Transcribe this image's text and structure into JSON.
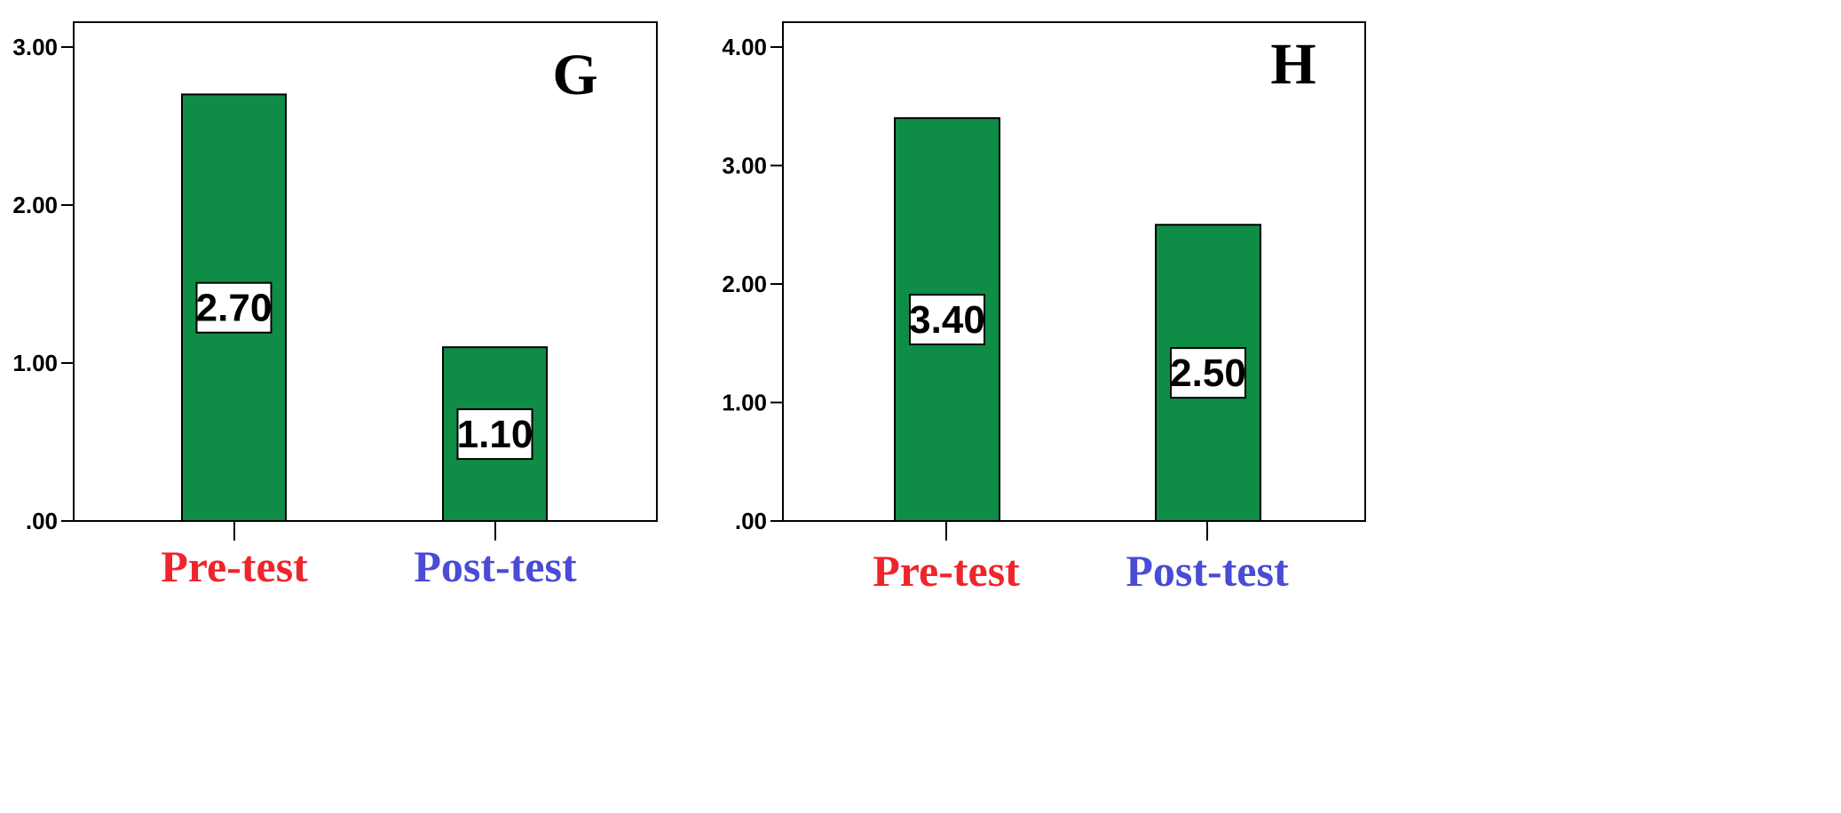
{
  "colors": {
    "bar": "#0f8c46",
    "pre_test_label": "#f0242b",
    "post_test_label": "#4a4bd6",
    "axis": "#000000",
    "frame_bg": "#ffffff"
  },
  "chart_data": [
    {
      "type": "bar",
      "panel": "G",
      "categories": [
        "Pre-test",
        "Post-test"
      ],
      "values": [
        2.7,
        1.1
      ],
      "value_labels": [
        "2.70",
        "1.10"
      ],
      "ylim": [
        0,
        3.0
      ],
      "yticks": [
        ".00",
        "1.00",
        "2.00",
        "3.00"
      ],
      "ytick_values": [
        0,
        1,
        2,
        3
      ],
      "grid": false,
      "legend": "none"
    },
    {
      "type": "bar",
      "panel": "H",
      "categories": [
        "Pre-test",
        "Post-test"
      ],
      "values": [
        3.4,
        2.5
      ],
      "value_labels": [
        "3.40",
        "2.50"
      ],
      "ylim": [
        0,
        4.0
      ],
      "yticks": [
        ".00",
        "1.00",
        "2.00",
        "3.00",
        "4.00"
      ],
      "ytick_values": [
        0,
        1,
        2,
        3,
        4
      ],
      "grid": false,
      "legend": "none"
    }
  ]
}
